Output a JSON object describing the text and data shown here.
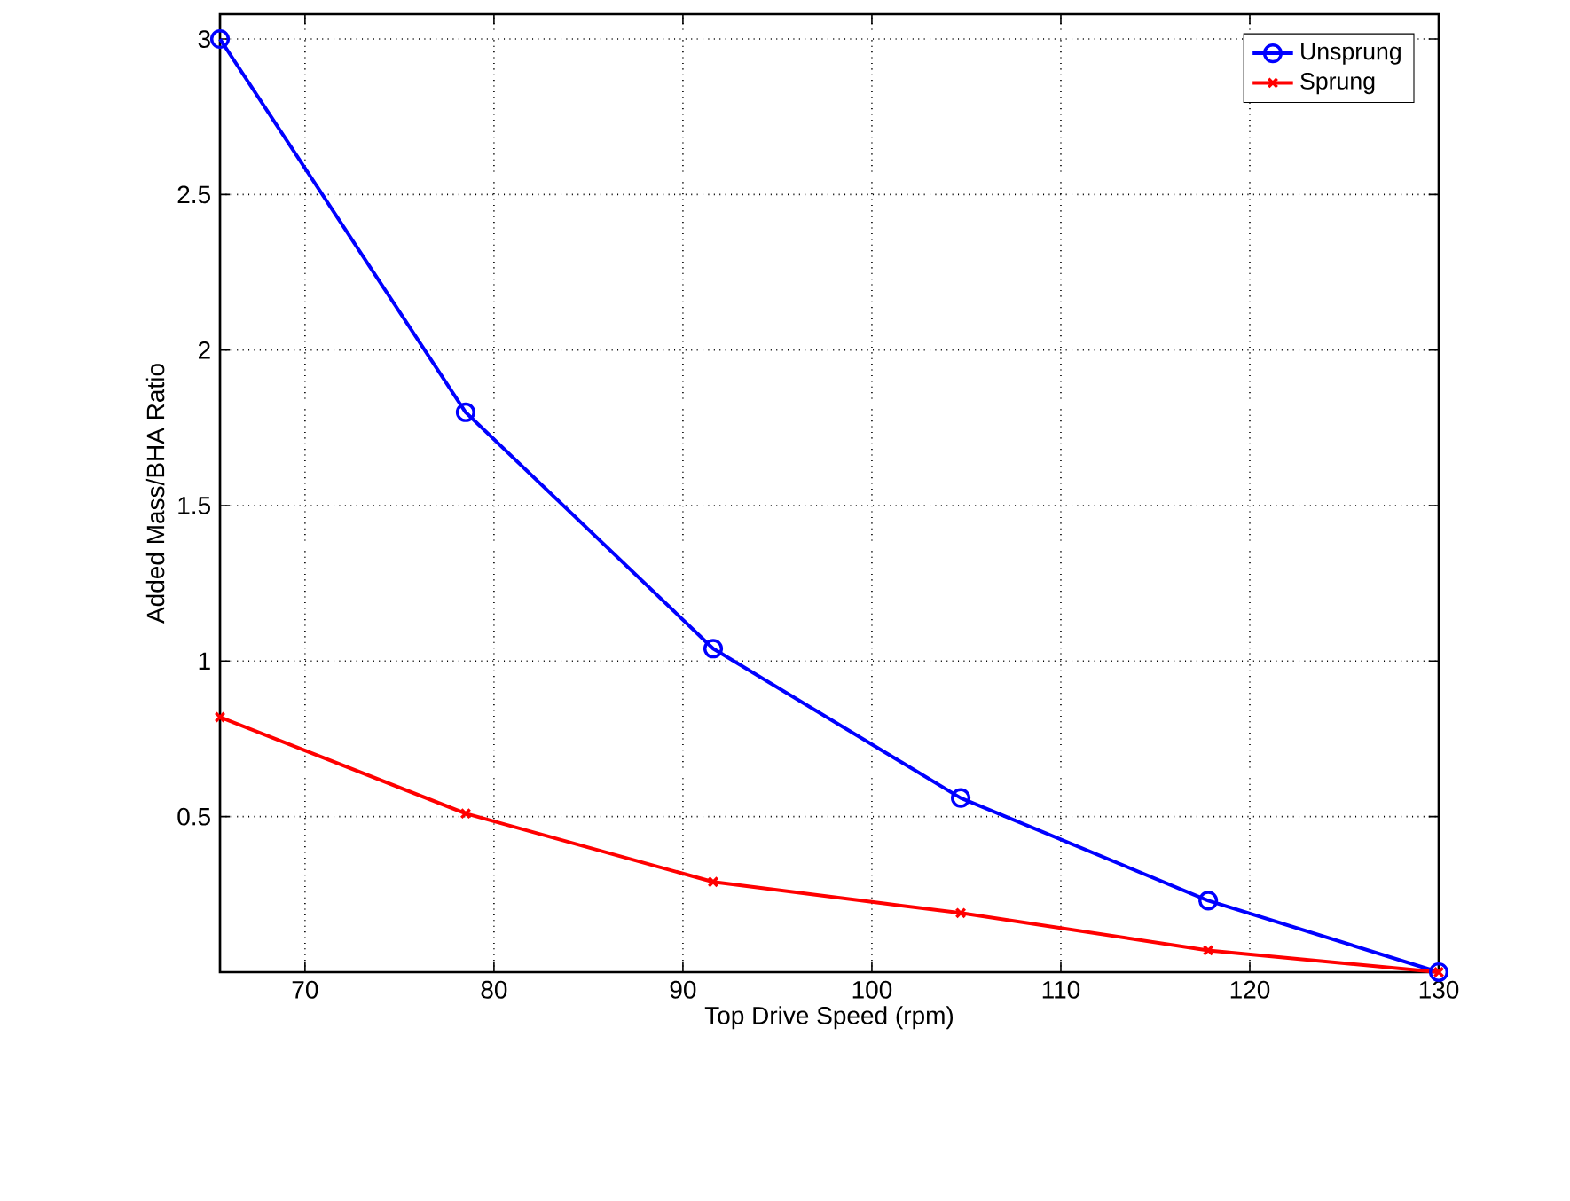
{
  "chart_data": {
    "type": "line",
    "xlabel": "Top Drive Speed (rpm)",
    "ylabel": "Added Mass/BHA Ratio",
    "x": [
      65.5,
      78.5,
      91.6,
      104.7,
      117.8,
      130
    ],
    "series": [
      {
        "name": "Unsprung",
        "color": "#0000ff",
        "marker": "circle",
        "values": [
          3.0,
          1.8,
          1.04,
          0.56,
          0.23,
          0
        ]
      },
      {
        "name": "Sprung",
        "color": "#ff0000",
        "marker": "cross",
        "values": [
          0.82,
          0.51,
          0.29,
          0.19,
          0.07,
          0
        ]
      }
    ],
    "xlim": [
      65.5,
      130
    ],
    "ylim": [
      0,
      3.08
    ],
    "xticks": [
      70,
      80,
      90,
      100,
      110,
      120,
      130
    ],
    "yticks": [
      0.5,
      1,
      1.5,
      2,
      2.5,
      3
    ],
    "grid": true,
    "legend": "top right",
    "line_style": "solid"
  }
}
